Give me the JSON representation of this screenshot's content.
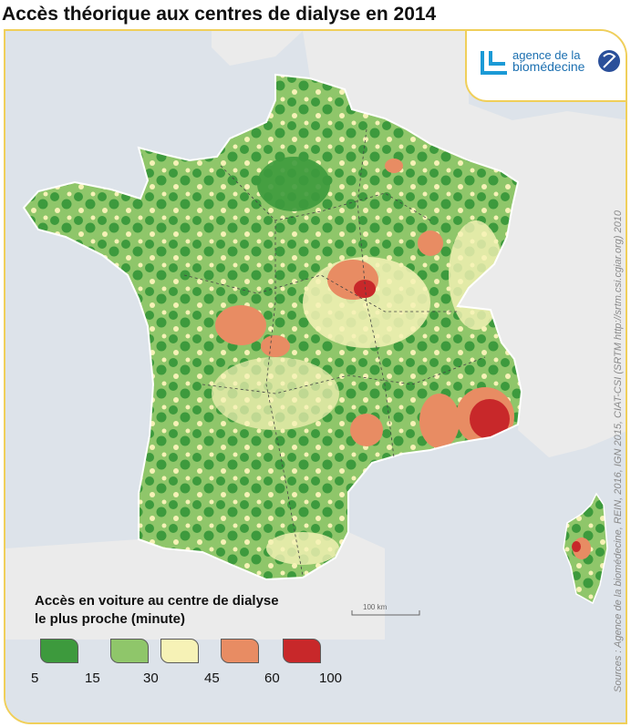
{
  "title": "Accès théorique aux centres de dialyse en 2014",
  "logo": {
    "line1": "agence de la",
    "line2": "biomédecine"
  },
  "sources": "Sources : Agence de la biomédecine, REIN, 2016, IGN 2015, CIAT-CSI (SRTM http://srtm.csi.cgiar.org) 2010",
  "scale_bar": "100 km",
  "legend": {
    "title_line1": "Accès en voiture au centre de dialyse",
    "title_line2": "le plus proche (minute)",
    "classes": [
      {
        "color": "#3d9a3d"
      },
      {
        "color": "#8fc66a"
      },
      {
        "color": "#f6f2b6"
      },
      {
        "color": "#e88c63"
      },
      {
        "color": "#c8282a"
      }
    ],
    "ticks": [
      "5",
      "15",
      "30",
      "45",
      "60",
      "100"
    ]
  },
  "colors": {
    "frame": "#f0cf5a",
    "sea": "#dde3ea",
    "land_neighbors": "#ebebeb"
  }
}
